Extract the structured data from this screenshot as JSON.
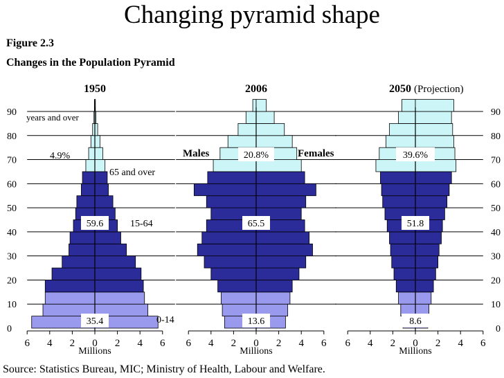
{
  "slide_title": "Changing pyramid shape",
  "figure": {
    "number": "Figure 2.3",
    "title": "Changes in the Population Pyramid",
    "source": "Source:  Statistics Bureau, MIC;  Ministry of Health, Labour and Welfare."
  },
  "colors": {
    "young": "#9999ee",
    "working": "#2b2b99",
    "old": "#ccf5f7",
    "line": "#000000"
  },
  "axis": {
    "age_ticks": [
      "90",
      "80",
      "70",
      "60",
      "50",
      "40",
      "30",
      "20",
      "10",
      "0"
    ],
    "x_ticks": [
      "6",
      "4",
      "2",
      "0",
      "2",
      "4",
      "6"
    ],
    "x_label": "Millions"
  },
  "chart_data": [
    {
      "type": "bar",
      "title": "1950",
      "title_suffix": "",
      "xlabel": "Millions",
      "xlim": [
        -6,
        6
      ],
      "age_bins": [
        "0-4",
        "5-9",
        "10-14",
        "15-19",
        "20-24",
        "25-29",
        "30-34",
        "35-39",
        "40-44",
        "45-49",
        "50-54",
        "55-59",
        "60-64",
        "65-69",
        "70-74",
        "75-79",
        "80-84",
        "85-89",
        "90+"
      ],
      "males": [
        5.6,
        4.6,
        4.4,
        4.4,
        3.8,
        2.9,
        2.3,
        2.2,
        1.9,
        1.7,
        1.6,
        1.2,
        1.1,
        0.8,
        0.55,
        0.35,
        0.2,
        0.08,
        0.04
      ],
      "females": [
        5.6,
        4.7,
        4.4,
        4.3,
        4.1,
        3.6,
        2.8,
        2.3,
        2.0,
        1.8,
        1.6,
        1.2,
        1.1,
        0.9,
        0.7,
        0.45,
        0.25,
        0.1,
        0.05
      ],
      "labels": {
        "share_0_14": "35.4",
        "share_15_64": "59.6",
        "share_65_over": "4.9%",
        "group_0_14": "0-14",
        "group_15_64": "15-64",
        "group_65_over": "65 and over",
        "top_label": "years and over"
      }
    },
    {
      "type": "bar",
      "title": "2006",
      "title_suffix": "",
      "xlabel": "Millions",
      "xlim": [
        -6,
        6
      ],
      "age_bins": [
        "0-4",
        "5-9",
        "10-14",
        "15-19",
        "20-24",
        "25-29",
        "30-34",
        "35-39",
        "40-44",
        "45-49",
        "50-54",
        "55-59",
        "60-64",
        "65-69",
        "70-74",
        "75-79",
        "80-84",
        "85-89",
        "90+"
      ],
      "males": [
        2.8,
        3.0,
        3.1,
        3.4,
        4.0,
        4.6,
        5.2,
        4.8,
        4.4,
        4.0,
        4.4,
        5.5,
        4.3,
        3.8,
        3.2,
        2.5,
        1.6,
        0.9,
        0.3
      ],
      "females": [
        2.6,
        2.8,
        3.0,
        3.2,
        3.8,
        4.4,
        5.0,
        4.7,
        4.3,
        4.0,
        4.4,
        5.3,
        4.3,
        4.0,
        3.6,
        3.2,
        2.5,
        1.6,
        0.9
      ],
      "labels": {
        "share_0_14": "13.6",
        "share_15_64": "65.5",
        "share_65_over": "20.8%",
        "males": "Males",
        "females": "Females"
      }
    },
    {
      "type": "bar",
      "title": "2050",
      "title_suffix": "(Projection)",
      "xlabel": "Millions",
      "xlim": [
        -6,
        6
      ],
      "age_bins": [
        "0-4",
        "5-9",
        "10-14",
        "15-19",
        "20-24",
        "25-29",
        "30-34",
        "35-39",
        "40-44",
        "45-49",
        "50-54",
        "55-59",
        "60-64",
        "65-69",
        "70-74",
        "75-79",
        "80-84",
        "85-89",
        "90+"
      ],
      "males": [
        1.1,
        1.3,
        1.5,
        1.7,
        1.9,
        2.1,
        2.2,
        2.3,
        2.5,
        2.7,
        2.9,
        3.0,
        3.1,
        3.5,
        3.2,
        2.6,
        2.3,
        1.5,
        1.2
      ],
      "females": [
        1.1,
        1.2,
        1.4,
        1.6,
        1.8,
        2.0,
        2.1,
        2.3,
        2.4,
        2.6,
        2.8,
        3.0,
        3.2,
        3.6,
        3.5,
        3.4,
        3.3,
        3.2,
        3.4
      ],
      "labels": {
        "share_0_14": "8.6",
        "share_15_64": "51.8",
        "share_65_over": "39.6%"
      }
    }
  ]
}
